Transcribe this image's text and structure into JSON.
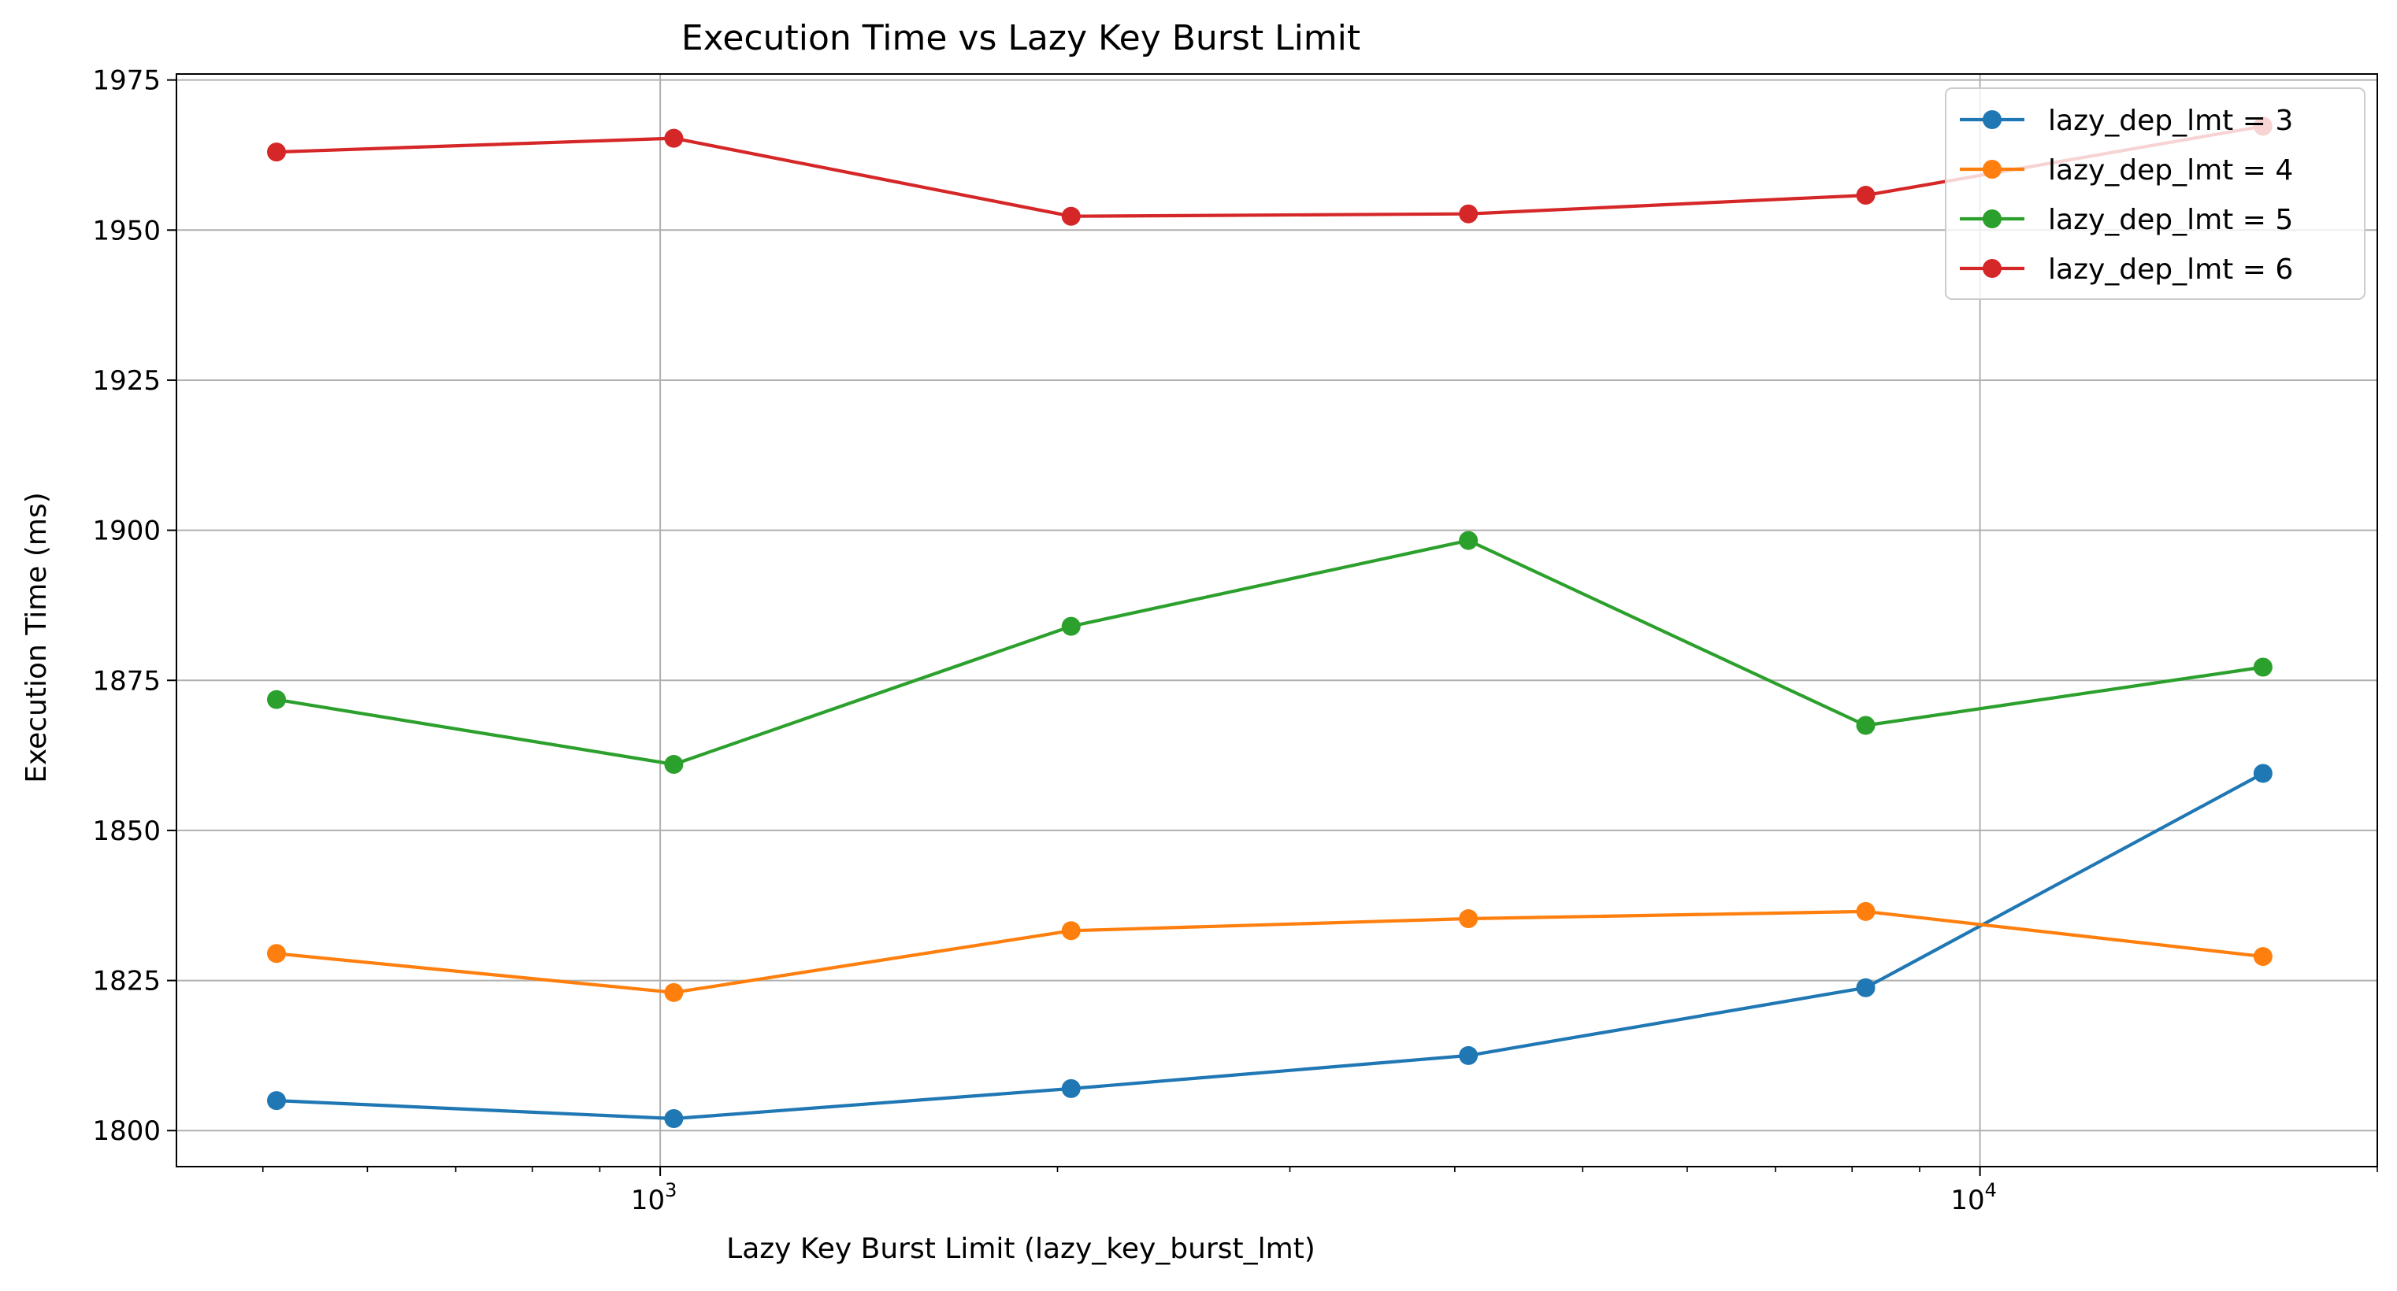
{
  "chart_data": {
    "type": "line",
    "title": "Execution Time vs Lazy Key Burst Limit",
    "xlabel": "Lazy Key Burst Limit (lazy_key_burst_lmt)",
    "ylabel": "Execution Time (ms)",
    "x_scale": "log",
    "x": [
      512,
      1024,
      2048,
      4096,
      8192,
      16384
    ],
    "xlim": [
      430,
      20000
    ],
    "ylim": [
      1794,
      1976
    ],
    "x_major_ticks": [
      {
        "value": 1000,
        "base": "10",
        "exp": "3"
      },
      {
        "value": 10000,
        "base": "10",
        "exp": "4"
      }
    ],
    "y_ticks": [
      {
        "value": 1800,
        "label": "1800"
      },
      {
        "value": 1825,
        "label": "1825"
      },
      {
        "value": 1850,
        "label": "1850"
      },
      {
        "value": 1875,
        "label": "1875"
      },
      {
        "value": 1900,
        "label": "1900"
      },
      {
        "value": 1925,
        "label": "1925"
      },
      {
        "value": 1950,
        "label": "1950"
      },
      {
        "value": 1975,
        "label": "1975"
      }
    ],
    "grid": true,
    "legend_position": "top-right",
    "series": [
      {
        "name": "lazy_dep_lmt = 3",
        "color": "#1f77b4",
        "values": [
          1805,
          1802,
          1807,
          1812.5,
          1823.8,
          1859.5
        ]
      },
      {
        "name": "lazy_dep_lmt = 4",
        "color": "#ff7f0e",
        "values": [
          1829.5,
          1823,
          1833.3,
          1835.3,
          1836.5,
          1829
        ]
      },
      {
        "name": "lazy_dep_lmt = 5",
        "color": "#2ca02c",
        "values": [
          1871.8,
          1861,
          1884,
          1898.3,
          1867.5,
          1877.2
        ]
      },
      {
        "name": "lazy_dep_lmt = 6",
        "color": "#d62728",
        "values": [
          1963,
          1965.3,
          1952.3,
          1952.7,
          1955.8,
          1967.3
        ]
      }
    ]
  }
}
